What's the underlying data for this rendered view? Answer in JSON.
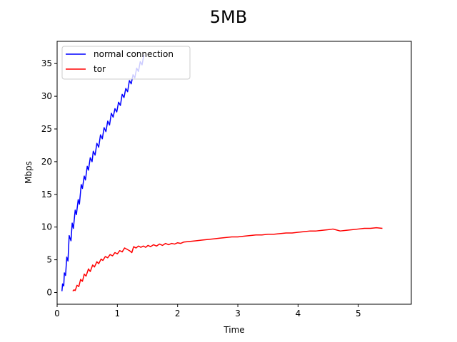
{
  "chart_data": {
    "type": "line",
    "title": "5MB",
    "xlabel": "Time",
    "ylabel": "Mbps",
    "xlim": [
      0,
      5.88
    ],
    "ylim": [
      -1.8,
      38.4
    ],
    "xticks": [
      0,
      1,
      2,
      3,
      4,
      5
    ],
    "yticks": [
      0,
      5,
      10,
      15,
      20,
      25,
      30,
      35
    ],
    "legend_position": "upper-left",
    "grid": false,
    "series": [
      {
        "name": "normal connection",
        "color": "#0000ff",
        "points": [
          [
            0.08,
            0.2
          ],
          [
            0.09,
            1.3
          ],
          [
            0.11,
            1.0
          ],
          [
            0.12,
            3.0
          ],
          [
            0.14,
            2.6
          ],
          [
            0.16,
            5.4
          ],
          [
            0.18,
            4.8
          ],
          [
            0.2,
            8.7
          ],
          [
            0.23,
            7.9
          ],
          [
            0.25,
            10.6
          ],
          [
            0.27,
            9.8
          ],
          [
            0.3,
            12.6
          ],
          [
            0.32,
            11.9
          ],
          [
            0.35,
            14.2
          ],
          [
            0.37,
            13.5
          ],
          [
            0.4,
            16.5
          ],
          [
            0.42,
            15.9
          ],
          [
            0.45,
            17.8
          ],
          [
            0.47,
            17.2
          ],
          [
            0.5,
            19.3
          ],
          [
            0.52,
            18.7
          ],
          [
            0.55,
            20.6
          ],
          [
            0.58,
            20.0
          ],
          [
            0.6,
            21.6
          ],
          [
            0.63,
            21.0
          ],
          [
            0.66,
            22.8
          ],
          [
            0.69,
            22.2
          ],
          [
            0.72,
            24.1
          ],
          [
            0.75,
            23.5
          ],
          [
            0.78,
            25.2
          ],
          [
            0.81,
            24.6
          ],
          [
            0.84,
            26.2
          ],
          [
            0.87,
            25.6
          ],
          [
            0.9,
            27.4
          ],
          [
            0.93,
            26.8
          ],
          [
            0.96,
            28.1
          ],
          [
            0.99,
            27.6
          ],
          [
            1.02,
            29.1
          ],
          [
            1.05,
            28.6
          ],
          [
            1.08,
            30.3
          ],
          [
            1.11,
            29.8
          ],
          [
            1.14,
            31.2
          ],
          [
            1.17,
            30.7
          ],
          [
            1.2,
            32.4
          ],
          [
            1.23,
            31.9
          ],
          [
            1.26,
            33.3
          ],
          [
            1.29,
            32.8
          ],
          [
            1.32,
            34.3
          ],
          [
            1.35,
            33.8
          ],
          [
            1.38,
            35.3
          ],
          [
            1.41,
            34.8
          ],
          [
            1.44,
            36.3
          ]
        ]
      },
      {
        "name": "tor",
        "color": "#ff0000",
        "points": [
          [
            0.26,
            0.2
          ],
          [
            0.28,
            0.4
          ],
          [
            0.3,
            0.3
          ],
          [
            0.33,
            1.1
          ],
          [
            0.36,
            0.9
          ],
          [
            0.39,
            2.0
          ],
          [
            0.42,
            1.7
          ],
          [
            0.45,
            2.8
          ],
          [
            0.48,
            2.5
          ],
          [
            0.52,
            3.6
          ],
          [
            0.55,
            3.2
          ],
          [
            0.59,
            4.2
          ],
          [
            0.62,
            3.9
          ],
          [
            0.66,
            4.7
          ],
          [
            0.69,
            4.4
          ],
          [
            0.73,
            5.1
          ],
          [
            0.76,
            4.9
          ],
          [
            0.8,
            5.5
          ],
          [
            0.84,
            5.3
          ],
          [
            0.88,
            5.8
          ],
          [
            0.92,
            5.6
          ],
          [
            0.96,
            6.1
          ],
          [
            1.0,
            5.9
          ],
          [
            1.04,
            6.4
          ],
          [
            1.08,
            6.2
          ],
          [
            1.12,
            6.8
          ],
          [
            1.16,
            6.6
          ],
          [
            1.2,
            6.4
          ],
          [
            1.24,
            6.1
          ],
          [
            1.27,
            7.0
          ],
          [
            1.31,
            6.8
          ],
          [
            1.35,
            7.1
          ],
          [
            1.39,
            6.9
          ],
          [
            1.43,
            7.1
          ],
          [
            1.47,
            6.9
          ],
          [
            1.51,
            7.2
          ],
          [
            1.55,
            7.0
          ],
          [
            1.6,
            7.3
          ],
          [
            1.65,
            7.1
          ],
          [
            1.7,
            7.4
          ],
          [
            1.75,
            7.2
          ],
          [
            1.8,
            7.5
          ],
          [
            1.85,
            7.3
          ],
          [
            1.9,
            7.5
          ],
          [
            1.95,
            7.4
          ],
          [
            2.0,
            7.6
          ],
          [
            2.05,
            7.5
          ],
          [
            2.1,
            7.7
          ],
          [
            2.2,
            7.8
          ],
          [
            2.3,
            7.9
          ],
          [
            2.4,
            8.0
          ],
          [
            2.5,
            8.1
          ],
          [
            2.6,
            8.2
          ],
          [
            2.7,
            8.3
          ],
          [
            2.8,
            8.4
          ],
          [
            2.9,
            8.5
          ],
          [
            3.0,
            8.5
          ],
          [
            3.1,
            8.6
          ],
          [
            3.2,
            8.7
          ],
          [
            3.3,
            8.8
          ],
          [
            3.4,
            8.8
          ],
          [
            3.5,
            8.9
          ],
          [
            3.6,
            8.9
          ],
          [
            3.7,
            9.0
          ],
          [
            3.8,
            9.1
          ],
          [
            3.9,
            9.1
          ],
          [
            4.0,
            9.2
          ],
          [
            4.1,
            9.3
          ],
          [
            4.2,
            9.4
          ],
          [
            4.3,
            9.4
          ],
          [
            4.4,
            9.5
          ],
          [
            4.5,
            9.6
          ],
          [
            4.58,
            9.7
          ],
          [
            4.62,
            9.6
          ],
          [
            4.7,
            9.4
          ],
          [
            4.8,
            9.5
          ],
          [
            4.9,
            9.6
          ],
          [
            5.0,
            9.7
          ],
          [
            5.1,
            9.8
          ],
          [
            5.2,
            9.8
          ],
          [
            5.3,
            9.9
          ],
          [
            5.4,
            9.8
          ]
        ]
      }
    ]
  }
}
